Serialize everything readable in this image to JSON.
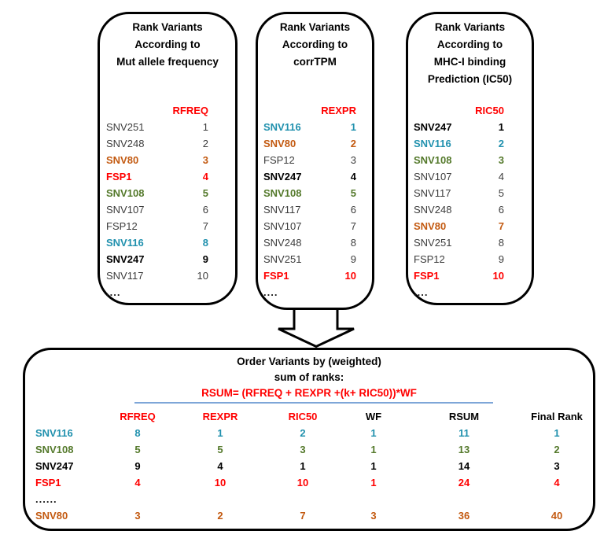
{
  "colors": {
    "accent_teal": "#2191ae",
    "accent_green": "#54792b",
    "accent_orange": "#c35a11",
    "accent_red": "#ff0000",
    "plain_text": "#3c3c3c",
    "divider_blue": "#7ea6d8"
  },
  "boxes": [
    {
      "title_lines": [
        "Rank Variants",
        "According to",
        "Mut allele frequency"
      ],
      "rank_header": "RFREQ",
      "rows": [
        {
          "name": "SNV251",
          "rank": "1",
          "style": "plain"
        },
        {
          "name": "SNV248",
          "rank": "2",
          "style": "plain"
        },
        {
          "name": "SNV80",
          "rank": "3",
          "style": "orange"
        },
        {
          "name": "FSP1",
          "rank": "4",
          "style": "red"
        },
        {
          "name": "SNV108",
          "rank": "5",
          "style": "green"
        },
        {
          "name": "SNV107",
          "rank": "6",
          "style": "plain"
        },
        {
          "name": "FSP12",
          "rank": "7",
          "style": "plain"
        },
        {
          "name": "SNV116",
          "rank": "8",
          "style": "teal"
        },
        {
          "name": "SNV247",
          "rank": "9",
          "style": "black"
        },
        {
          "name": "SNV117",
          "rank": "10",
          "style": "plain"
        }
      ],
      "ellipsis": "...."
    },
    {
      "title_lines": [
        "Rank Variants",
        "According to",
        "corrTPM"
      ],
      "rank_header": "REXPR",
      "rows": [
        {
          "name": "SNV116",
          "rank": "1",
          "style": "teal"
        },
        {
          "name": "SNV80",
          "rank": "2",
          "style": "orange"
        },
        {
          "name": "FSP12",
          "rank": "3",
          "style": "plain"
        },
        {
          "name": "SNV247",
          "rank": "4",
          "style": "black"
        },
        {
          "name": "SNV108",
          "rank": "5",
          "style": "green"
        },
        {
          "name": "SNV117",
          "rank": "6",
          "style": "plain"
        },
        {
          "name": "SNV107",
          "rank": "7",
          "style": "plain"
        },
        {
          "name": "SNV248",
          "rank": "8",
          "style": "plain"
        },
        {
          "name": "SNV251",
          "rank": "9",
          "style": "plain"
        },
        {
          "name": "FSP1",
          "rank": "10",
          "style": "red"
        }
      ],
      "ellipsis": "...."
    },
    {
      "title_lines": [
        "Rank Variants",
        "According to",
        "MHC-I binding",
        "Prediction (IC50)"
      ],
      "rank_header": "RIC50",
      "rows": [
        {
          "name": "SNV247",
          "rank": "1",
          "style": "black"
        },
        {
          "name": "SNV116",
          "rank": "2",
          "style": "teal"
        },
        {
          "name": "SNV108",
          "rank": "3",
          "style": "green"
        },
        {
          "name": "SNV107",
          "rank": "4",
          "style": "plain"
        },
        {
          "name": "SNV117",
          "rank": "5",
          "style": "plain"
        },
        {
          "name": "SNV248",
          "rank": "6",
          "style": "plain"
        },
        {
          "name": "SNV80",
          "rank": "7",
          "style": "orange"
        },
        {
          "name": "SNV251",
          "rank": "8",
          "style": "plain"
        },
        {
          "name": "FSP12",
          "rank": "9",
          "style": "plain"
        },
        {
          "name": "FSP1",
          "rank": "10",
          "style": "red"
        }
      ],
      "ellipsis": "...."
    }
  ],
  "bottom": {
    "title_lines": [
      "Order Variants by (weighted)",
      "sum of ranks:"
    ],
    "formula": "RSUM= (RFREQ + REXPR +(k+ RIC50))*WF",
    "columns": [
      "RFREQ",
      "REXPR",
      "RIC50",
      "WF",
      "RSUM",
      "Final Rank"
    ],
    "rows": [
      {
        "name": "SNV116",
        "values": [
          "8",
          "1",
          "2",
          "1",
          "11",
          "1"
        ],
        "style": "teal"
      },
      {
        "name": "SNV108",
        "values": [
          "5",
          "5",
          "3",
          "1",
          "13",
          "2"
        ],
        "style": "green"
      },
      {
        "name": "SNV247",
        "values": [
          "9",
          "4",
          "1",
          "1",
          "14",
          "3"
        ],
        "style": "black"
      },
      {
        "name": "FSP1",
        "values": [
          "4",
          "10",
          "10",
          "1",
          "24",
          "4"
        ],
        "style": "red"
      },
      {
        "name": "......",
        "values": [
          "",
          "",
          "",
          "",
          "",
          ""
        ],
        "style": "dots"
      },
      {
        "name": "SNV80",
        "values": [
          "3",
          "2",
          "7",
          "3",
          "36",
          "40"
        ],
        "style": "orange"
      }
    ]
  }
}
